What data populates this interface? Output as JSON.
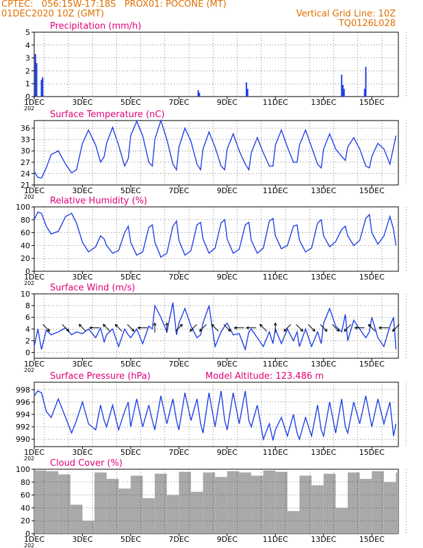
{
  "header": {
    "line1": "CPTEC:   056:15W-17:18S   PROX01: POCONE (MT)",
    "line2_left": "01DEC2020 10Z (GMT)",
    "line2_right": "Vertical Grid Line: 10Z",
    "line3_right": "TQ0126L028",
    "color": "#e07000"
  },
  "colors": {
    "title": "#e0007a",
    "line": "#1f3fe6",
    "cloud": "#a9a9a9",
    "frame": "#000000"
  },
  "x_ticks": [
    "1DEC",
    "3DEC",
    "5DEC",
    "7DEC",
    "9DEC",
    "11DEC",
    "13DEC",
    "15DEC"
  ],
  "x_year_fragment": "202",
  "chart_data": [
    {
      "type": "bar",
      "title": "Precipitation (mm/h)",
      "x_unit": "days since 01DEC2020 00Z",
      "ylim": [
        0,
        5
      ],
      "yticks": [
        0,
        1,
        2,
        3,
        4,
        5
      ],
      "series": [
        {
          "name": "Precipitation (mm/h)",
          "x": [
            0.05,
            0.1,
            0.3,
            0.35,
            6.8,
            6.85,
            8.8,
            8.85,
            12.75,
            12.8,
            12.85,
            13.7,
            13.75
          ],
          "values": [
            3.3,
            2.6,
            1.3,
            1.5,
            0.5,
            0.3,
            1.1,
            0.6,
            1.7,
            0.9,
            0.6,
            0.6,
            2.3
          ]
        }
      ]
    },
    {
      "type": "line",
      "title": "Surface Temperature (nC)",
      "ylim": [
        21,
        38
      ],
      "yticks": [
        21,
        24,
        27,
        30,
        33,
        36
      ],
      "series": [
        {
          "name": "Surface Temperature (nC)",
          "x": [
            0,
            0.15,
            0.3,
            0.5,
            0.7,
            1.0,
            1.3,
            1.55,
            1.75,
            2.0,
            2.25,
            2.55,
            2.75,
            2.9,
            3.0,
            3.25,
            3.5,
            3.75,
            3.9,
            4.0,
            4.25,
            4.5,
            4.75,
            4.9,
            5.0,
            5.25,
            5.5,
            5.75,
            5.9,
            6.0,
            6.25,
            6.5,
            6.75,
            6.9,
            7.0,
            7.25,
            7.5,
            7.75,
            7.9,
            8.0,
            8.25,
            8.5,
            8.75,
            8.9,
            9.0,
            9.25,
            9.5,
            9.75,
            9.9,
            10.0,
            10.25,
            10.5,
            10.75,
            10.9,
            11.0,
            11.25,
            11.5,
            11.75,
            11.9,
            12.0,
            12.25,
            12.5,
            12.75,
            12.9,
            13.0,
            13.25,
            13.5,
            13.75,
            13.9,
            14.0,
            14.25,
            14.5,
            14.75,
            14.9,
            15.0
          ],
          "values": [
            24.5,
            23.0,
            22.8,
            25.5,
            29.0,
            30.0,
            26.5,
            24.2,
            25.0,
            32.0,
            35.5,
            31.5,
            27.0,
            28.5,
            32.0,
            36.2,
            31.5,
            26.0,
            28.0,
            34.0,
            37.8,
            34.0,
            27.0,
            26.0,
            33.0,
            38.0,
            33.0,
            26.5,
            25.0,
            31.0,
            36.0,
            32.5,
            26.5,
            25.0,
            30.5,
            35.0,
            31.0,
            26.0,
            25.0,
            30.5,
            34.5,
            30.0,
            26.5,
            25.0,
            29.5,
            33.5,
            29.5,
            26.0,
            26.0,
            31.5,
            35.5,
            31.0,
            27.0,
            27.0,
            31.5,
            35.5,
            31.0,
            26.5,
            25.5,
            30.5,
            34.5,
            30.5,
            28.5,
            27.5,
            31.0,
            33.5,
            30.5,
            26.0,
            25.5,
            28.5,
            32.0,
            30.5,
            26.5,
            31.0,
            34.0
          ]
        }
      ]
    },
    {
      "type": "line",
      "title": "Relative Humidity (%)",
      "ylim": [
        0,
        100
      ],
      "yticks": [
        0,
        20,
        40,
        60,
        80,
        100
      ],
      "series": [
        {
          "name": "Relative Humidity (%)",
          "x": [
            0,
            0.15,
            0.3,
            0.5,
            0.7,
            1.0,
            1.3,
            1.55,
            1.75,
            2.0,
            2.25,
            2.55,
            2.75,
            2.9,
            3.0,
            3.25,
            3.5,
            3.75,
            3.9,
            4.0,
            4.25,
            4.5,
            4.75,
            4.9,
            5.0,
            5.25,
            5.5,
            5.75,
            5.9,
            6.0,
            6.25,
            6.5,
            6.75,
            6.9,
            7.0,
            7.25,
            7.5,
            7.75,
            7.9,
            8.0,
            8.25,
            8.5,
            8.75,
            8.9,
            9.0,
            9.25,
            9.5,
            9.75,
            9.9,
            10.0,
            10.25,
            10.5,
            10.75,
            10.9,
            11.0,
            11.25,
            11.5,
            11.75,
            11.9,
            12.0,
            12.25,
            12.5,
            12.75,
            12.9,
            13.0,
            13.25,
            13.5,
            13.75,
            13.9,
            14.0,
            14.25,
            14.5,
            14.75,
            14.9,
            15.0
          ],
          "values": [
            80,
            92,
            90,
            70,
            58,
            62,
            85,
            90,
            75,
            45,
            30,
            38,
            55,
            50,
            40,
            28,
            32,
            60,
            70,
            45,
            25,
            30,
            68,
            72,
            45,
            22,
            28,
            70,
            78,
            48,
            25,
            32,
            72,
            76,
            50,
            28,
            36,
            75,
            80,
            50,
            28,
            34,
            72,
            76,
            48,
            28,
            36,
            78,
            82,
            55,
            35,
            40,
            70,
            72,
            48,
            30,
            36,
            75,
            80,
            55,
            38,
            46,
            65,
            70,
            55,
            40,
            48,
            82,
            88,
            60,
            42,
            55,
            85,
            65,
            40
          ]
        }
      ]
    },
    {
      "type": "line",
      "title": "Surface Wind (m/s)",
      "ylim": [
        -1,
        10
      ],
      "yticks": [
        0,
        2,
        4,
        6,
        8,
        10
      ],
      "series": [
        {
          "name": "Surface Wind (m/s)",
          "x": [
            0,
            0.15,
            0.3,
            0.5,
            0.7,
            1.0,
            1.3,
            1.55,
            1.75,
            2.0,
            2.25,
            2.55,
            2.75,
            2.9,
            3.0,
            3.25,
            3.5,
            3.75,
            3.9,
            4.0,
            4.25,
            4.5,
            4.75,
            4.9,
            5.0,
            5.25,
            5.5,
            5.75,
            5.9,
            6.0,
            6.25,
            6.5,
            6.75,
            6.9,
            7.0,
            7.25,
            7.5,
            7.75,
            7.9,
            8.0,
            8.25,
            8.5,
            8.75,
            8.9,
            9.0,
            9.25,
            9.5,
            9.75,
            9.9,
            10.0,
            10.25,
            10.5,
            10.75,
            10.9,
            11.0,
            11.25,
            11.5,
            11.75,
            11.9,
            12.0,
            12.25,
            12.5,
            12.75,
            12.9,
            13.0,
            13.25,
            13.5,
            13.75,
            13.9,
            14.0,
            14.25,
            14.5,
            14.75,
            14.9,
            15.0
          ],
          "values": [
            1.0,
            4.0,
            0.5,
            3.8,
            3.0,
            3.5,
            4.2,
            3.0,
            3.5,
            3.2,
            4.0,
            2.5,
            4.2,
            1.8,
            3.0,
            4.0,
            1.0,
            4.0,
            3.0,
            2.5,
            4.0,
            1.5,
            4.5,
            4.0,
            8.0,
            6.0,
            3.5,
            8.5,
            3.0,
            5.0,
            7.5,
            4.5,
            2.5,
            3.0,
            5.0,
            8.0,
            1.0,
            3.5,
            4.5,
            5.0,
            3.0,
            3.2,
            0.5,
            3.5,
            4.0,
            2.5,
            1.0,
            3.5,
            1.5,
            4.0,
            1.5,
            4.0,
            2.0,
            3.5,
            1.0,
            4.0,
            1.0,
            3.5,
            1.5,
            5.0,
            7.5,
            4.5,
            3.5,
            6.5,
            2.0,
            5.5,
            4.0,
            2.5,
            3.5,
            6.0,
            2.5,
            1.0,
            4.5,
            6.0,
            0.5
          ]
        }
      ],
      "arrows": [
        {
          "x": 0.5,
          "dir": "SE"
        },
        {
          "x": 1.3,
          "dir": "SE"
        },
        {
          "x": 2.0,
          "dir": "NW"
        },
        {
          "x": 2.5,
          "dir": "W"
        },
        {
          "x": 3.0,
          "dir": "NW"
        },
        {
          "x": 3.5,
          "dir": "NW"
        },
        {
          "x": 4.0,
          "dir": "SE"
        },
        {
          "x": 4.5,
          "dir": "W"
        },
        {
          "x": 5.0,
          "dir": "N"
        },
        {
          "x": 5.5,
          "dir": "N"
        },
        {
          "x": 6.0,
          "dir": "NE"
        },
        {
          "x": 6.6,
          "dir": "SW"
        },
        {
          "x": 7.0,
          "dir": "SW"
        },
        {
          "x": 7.5,
          "dir": "NW"
        },
        {
          "x": 8.0,
          "dir": "SE"
        },
        {
          "x": 8.5,
          "dir": "W"
        },
        {
          "x": 9.0,
          "dir": "W"
        },
        {
          "x": 9.5,
          "dir": "NW"
        },
        {
          "x": 10.0,
          "dir": "N"
        },
        {
          "x": 10.5,
          "dir": "SW"
        },
        {
          "x": 11.0,
          "dir": "SE"
        },
        {
          "x": 11.5,
          "dir": "SE"
        },
        {
          "x": 12.0,
          "dir": "SE"
        },
        {
          "x": 12.5,
          "dir": "SE"
        },
        {
          "x": 13.0,
          "dir": "SW"
        },
        {
          "x": 13.5,
          "dir": "W"
        },
        {
          "x": 14.0,
          "dir": "NW"
        },
        {
          "x": 14.5,
          "dir": "W"
        },
        {
          "x": 15.0,
          "dir": "SW"
        }
      ]
    },
    {
      "type": "line",
      "title": "Surface Pressure (hPa)",
      "annotation": "Model Altitude: 123.486  m",
      "ylim": [
        988.8,
        999.2
      ],
      "yticks": [
        990,
        992,
        994,
        996,
        998
      ],
      "series": [
        {
          "name": "Surface Pressure (hPa)",
          "x": [
            0,
            0.15,
            0.3,
            0.5,
            0.7,
            1.0,
            1.3,
            1.55,
            1.75,
            2.0,
            2.25,
            2.55,
            2.75,
            2.9,
            3.0,
            3.25,
            3.5,
            3.75,
            3.9,
            4.0,
            4.25,
            4.5,
            4.75,
            4.9,
            5.0,
            5.25,
            5.5,
            5.75,
            5.9,
            6.0,
            6.25,
            6.5,
            6.75,
            6.9,
            7.0,
            7.25,
            7.5,
            7.75,
            7.9,
            8.0,
            8.25,
            8.5,
            8.75,
            8.9,
            9.0,
            9.25,
            9.5,
            9.75,
            9.9,
            10.0,
            10.25,
            10.5,
            10.75,
            10.9,
            11.0,
            11.25,
            11.5,
            11.75,
            11.9,
            12.0,
            12.25,
            12.5,
            12.75,
            12.9,
            13.0,
            13.25,
            13.5,
            13.75,
            13.9,
            14.0,
            14.25,
            14.5,
            14.75,
            14.9,
            15.0
          ],
          "values": [
            997.0,
            997.8,
            997.5,
            994.5,
            993.5,
            996.5,
            993.5,
            991.0,
            993.0,
            996.0,
            992.5,
            991.5,
            995.5,
            993.0,
            992.0,
            995.5,
            991.5,
            994.5,
            996.0,
            992.0,
            996.5,
            992.0,
            995.5,
            993.0,
            991.5,
            997.0,
            992.5,
            996.5,
            993.0,
            991.5,
            997.5,
            993.0,
            996.5,
            992.5,
            991.0,
            997.5,
            992.0,
            997.8,
            993.0,
            991.5,
            997.5,
            992.5,
            997.8,
            993.0,
            992.0,
            995.5,
            990.0,
            992.5,
            989.8,
            991.5,
            993.5,
            990.5,
            994.0,
            991.0,
            990.0,
            993.5,
            990.5,
            995.5,
            991.5,
            990.5,
            996.0,
            991.0,
            996.5,
            992.0,
            991.0,
            996.0,
            992.5,
            997.0,
            994.0,
            992.0,
            996.5,
            992.5,
            996.0,
            990.5,
            992.5
          ]
        }
      ]
    },
    {
      "type": "bar",
      "title": "Cloud Cover (%)",
      "ylim": [
        0,
        100
      ],
      "yticks": [
        0,
        20,
        40,
        60,
        80,
        100
      ],
      "series": [
        {
          "name": "Cloud Cover (%)",
          "x": [
            0,
            0.5,
            1.0,
            1.5,
            2.0,
            2.5,
            3.0,
            3.5,
            4.0,
            4.5,
            5.0,
            5.5,
            6.0,
            6.5,
            7.0,
            7.5,
            8.0,
            8.5,
            9.0,
            9.5,
            10.0,
            10.5,
            11.0,
            11.5,
            12.0,
            12.5,
            13.0,
            13.5,
            14.0,
            14.5,
            15.0
          ],
          "values": [
            98,
            97,
            92,
            45,
            20,
            95,
            85,
            70,
            90,
            55,
            93,
            60,
            96,
            65,
            95,
            88,
            97,
            95,
            90,
            98,
            96,
            35,
            90,
            75,
            93,
            40,
            95,
            85,
            97,
            80,
            95
          ]
        }
      ]
    }
  ]
}
